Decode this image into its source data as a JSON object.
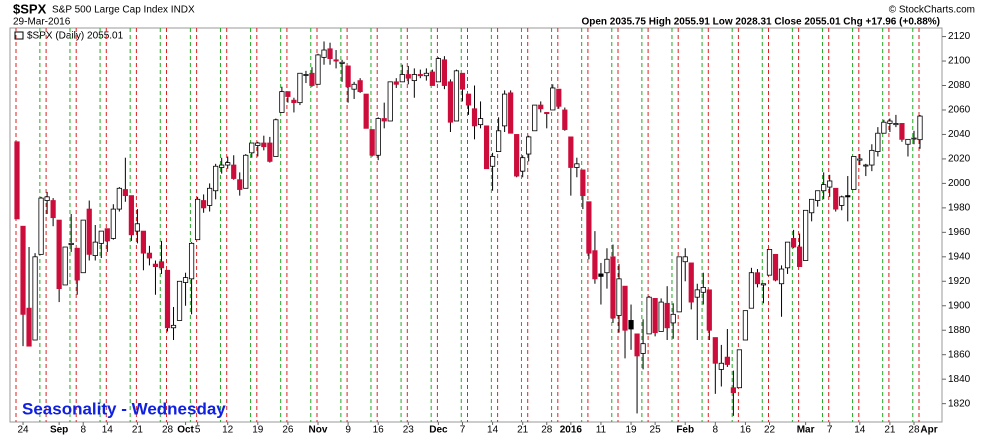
{
  "chart_data": {
    "type": "candlestick",
    "symbol": "$SPX",
    "name": "S&P 500 Large Cap Index INDX",
    "date": "29-Mar-2016",
    "credit": "© StockCharts.com",
    "quote": "Open 2035.75 High 2055.91 Low 2028.31 Close 2055.01 Chg +17.96 (+0.88%)",
    "legend": "$SPX (Daily) 2055.01",
    "annotation": "Seasonality - Wednesday",
    "up_color": "#ffffff",
    "down_color": "#cc0c3a",
    "ylim": [
      1805,
      2127
    ],
    "yticks": [
      1820,
      1840,
      1860,
      1880,
      1900,
      1920,
      1940,
      1960,
      1980,
      2000,
      2020,
      2040,
      2060,
      2080,
      2100,
      2120
    ],
    "categories": [
      null,
      "24",
      null,
      null,
      null,
      null,
      null,
      "Sep",
      null,
      null,
      null,
      "8",
      null,
      null,
      null,
      "14",
      null,
      null,
      null,
      null,
      "21",
      null,
      null,
      null,
      null,
      "28",
      null,
      null,
      "Oct",
      null,
      "5",
      null,
      null,
      null,
      null,
      "12",
      null,
      null,
      null,
      null,
      "19",
      null,
      null,
      null,
      null,
      "26",
      null,
      null,
      null,
      null,
      "Nov",
      null,
      null,
      null,
      null,
      "9",
      null,
      null,
      null,
      null,
      "16",
      null,
      null,
      null,
      null,
      "23",
      null,
      null,
      null,
      null,
      "Dec",
      null,
      null,
      null,
      "7",
      null,
      null,
      null,
      null,
      "14",
      null,
      null,
      null,
      null,
      "21",
      null,
      null,
      null,
      "28",
      null,
      null,
      null,
      "2016",
      null,
      null,
      null,
      null,
      "11",
      null,
      null,
      null,
      null,
      "19",
      null,
      null,
      null,
      "25",
      null,
      null,
      null,
      null,
      "Feb",
      null,
      null,
      null,
      null,
      "8",
      null,
      null,
      null,
      null,
      "16",
      null,
      null,
      null,
      "22",
      null,
      null,
      null,
      null,
      null,
      "Mar",
      null,
      null,
      null,
      "7",
      null,
      null,
      null,
      null,
      "14",
      null,
      null,
      null,
      null,
      "21",
      null,
      null,
      null,
      "28",
      null
    ],
    "x_end_label": "Apr",
    "ohlc": [
      [
        2034,
        2034,
        1971,
        1971
      ],
      [
        1965,
        1965,
        1867,
        1893
      ],
      [
        1898,
        1948,
        1867,
        1867
      ],
      [
        1872,
        1943,
        1872,
        1940
      ],
      [
        1942,
        1989,
        1942,
        1988
      ],
      [
        1986,
        1993,
        1975,
        1989
      ],
      [
        1986,
        1988,
        1965,
        1972
      ],
      [
        1970,
        1970,
        1903,
        1914
      ],
      [
        1917,
        1948,
        1917,
        1948
      ],
      [
        1950,
        1975,
        1944,
        1951
      ],
      [
        1947,
        1947,
        1909,
        1921
      ],
      [
        1927,
        1970,
        1927,
        1970
      ],
      [
        1979,
        1986,
        1937,
        1942
      ],
      [
        1941,
        1966,
        1937,
        1952
      ],
      [
        1951,
        1961,
        1939,
        1961
      ],
      [
        1963,
        1963,
        1944,
        1953
      ],
      [
        1955,
        1983,
        1954,
        1979
      ],
      [
        1979,
        1997,
        1977,
        1996
      ],
      [
        1995,
        2021,
        1985,
        1990
      ],
      [
        1990,
        1990,
        1953,
        1958
      ],
      [
        1961,
        1979,
        1951,
        1967
      ],
      [
        1961,
        1961,
        1929,
        1943
      ],
      [
        1943,
        1949,
        1933,
        1939
      ],
      [
        1934,
        1937,
        1909,
        1932
      ],
      [
        1936,
        1953,
        1926,
        1931
      ],
      [
        1929,
        1929,
        1879,
        1882
      ],
      [
        1882,
        1899,
        1872,
        1884
      ],
      [
        1888,
        1920,
        1888,
        1920
      ],
      [
        1919,
        1927,
        1900,
        1923
      ],
      [
        1922,
        1952,
        1893,
        1951
      ],
      [
        1954,
        1989,
        1954,
        1987
      ],
      [
        1986,
        1991,
        1976,
        1980
      ],
      [
        1982,
        2000,
        1977,
        1996
      ],
      [
        1994,
        2016,
        1987,
        2014
      ],
      [
        2013,
        2021,
        2008,
        2015
      ],
      [
        2015,
        2022,
        2012,
        2017
      ],
      [
        2015,
        2023,
        2003,
        2004
      ],
      [
        2003,
        2009,
        1990,
        1995
      ],
      [
        1996,
        2024,
        1996,
        2023
      ],
      [
        2025,
        2033,
        2021,
        2033
      ],
      [
        2031,
        2034,
        2022,
        2033
      ],
      [
        2033,
        2039,
        2027,
        2030
      ],
      [
        2033,
        2038,
        2017,
        2018
      ],
      [
        2022,
        2053,
        2022,
        2052
      ],
      [
        2058,
        2079,
        2058,
        2075
      ],
      [
        2075,
        2075,
        2066,
        2071
      ],
      [
        2068,
        2070,
        2058,
        2066
      ],
      [
        2066,
        2090,
        2064,
        2090
      ],
      [
        2089,
        2092,
        2082,
        2089
      ],
      [
        2090,
        2095,
        2079,
        2080
      ],
      [
        2081,
        2106,
        2081,
        2105
      ],
      [
        2103,
        2116,
        2097,
        2109
      ],
      [
        2110,
        2115,
        2097,
        2102
      ],
      [
        2101,
        2109,
        2094,
        2100
      ],
      [
        2098,
        2101,
        2083,
        2099
      ],
      [
        2096,
        2096,
        2066,
        2079
      ],
      [
        2077,
        2083,
        2069,
        2081
      ],
      [
        2084,
        2086,
        2074,
        2075
      ],
      [
        2073,
        2073,
        2045,
        2045
      ],
      [
        2044,
        2044,
        2022,
        2023
      ],
      [
        2023,
        2054,
        2019,
        2053
      ],
      [
        2053,
        2066,
        2045,
        2051
      ],
      [
        2051,
        2083,
        2051,
        2083
      ],
      [
        2083,
        2086,
        2078,
        2081
      ],
      [
        2083,
        2097,
        2083,
        2089
      ],
      [
        2089,
        2096,
        2081,
        2086
      ],
      [
        2084,
        2094,
        2070,
        2089
      ],
      [
        2089,
        2093,
        2086,
        2088
      ],
      [
        2088,
        2094,
        2084,
        2090
      ],
      [
        2091,
        2093,
        2080,
        2080
      ],
      [
        2083,
        2103,
        2083,
        2102
      ],
      [
        2101,
        2104,
        2077,
        2080
      ],
      [
        2083,
        2085,
        2042,
        2050
      ],
      [
        2051,
        2093,
        2051,
        2092
      ],
      [
        2090,
        2090,
        2067,
        2077
      ],
      [
        2073,
        2073,
        2056,
        2064
      ],
      [
        2061,
        2080,
        2036,
        2047
      ],
      [
        2048,
        2067,
        2045,
        2053
      ],
      [
        2047,
        2047,
        2012,
        2012
      ],
      [
        2014,
        2025,
        1994,
        2022
      ],
      [
        2026,
        2054,
        2026,
        2043
      ],
      [
        2047,
        2076,
        2042,
        2073
      ],
      [
        2074,
        2076,
        2041,
        2041
      ],
      [
        2040,
        2040,
        2005,
        2006
      ],
      [
        2010,
        2023,
        2005,
        2021
      ],
      [
        2024,
        2039,
        2018,
        2038
      ],
      [
        2043,
        2064,
        2043,
        2064
      ],
      [
        2064,
        2067,
        2058,
        2061
      ],
      [
        2058,
        2058,
        2045,
        2057
      ],
      [
        2060,
        2081,
        2060,
        2078
      ],
      [
        2077,
        2077,
        2061,
        2063
      ],
      [
        2060,
        2062,
        2043,
        2044
      ],
      [
        2038,
        2038,
        1990,
        2013
      ],
      [
        2013,
        2021,
        2005,
        2016
      ],
      [
        2011,
        2011,
        1979,
        1990
      ],
      [
        1985,
        1985,
        1938,
        1943
      ],
      [
        1945,
        1961,
        1918,
        1922
      ],
      [
        1926,
        1935,
        1901,
        1924
      ],
      [
        1927,
        1947,
        1914,
        1938
      ],
      [
        1940,
        1950,
        1886,
        1890
      ],
      [
        1892,
        1934,
        1878,
        1922
      ],
      [
        1916,
        1916,
        1857,
        1880
      ],
      [
        1888,
        1901,
        1864,
        1881
      ],
      [
        1877,
        1877,
        1812,
        1859
      ],
      [
        1861,
        1889,
        1848,
        1869
      ],
      [
        1877,
        1908,
        1877,
        1907
      ],
      [
        1906,
        1906,
        1875,
        1878
      ],
      [
        1879,
        1906,
        1879,
        1903
      ],
      [
        1902,
        1916,
        1872,
        1882
      ],
      [
        1886,
        1902,
        1873,
        1893
      ],
      [
        1895,
        1940,
        1895,
        1940
      ],
      [
        1936,
        1947,
        1920,
        1940
      ],
      [
        1935,
        1935,
        1897,
        1903
      ],
      [
        1907,
        1918,
        1872,
        1913
      ],
      [
        1911,
        1927,
        1901,
        1915
      ],
      [
        1913,
        1913,
        1872,
        1880
      ],
      [
        1874,
        1874,
        1828,
        1853
      ],
      [
        1848,
        1868,
        1834,
        1853
      ],
      [
        1858,
        1881,
        1850,
        1852
      ],
      [
        1833,
        1847,
        1810,
        1829
      ],
      [
        1833,
        1864,
        1833,
        1864
      ],
      [
        1872,
        1896,
        1872,
        1896
      ],
      [
        1898,
        1931,
        1898,
        1927
      ],
      [
        1927,
        1930,
        1915,
        1918
      ],
      [
        1917,
        1918,
        1902,
        1918
      ],
      [
        1925,
        1946,
        1925,
        1946
      ],
      [
        1942,
        1942,
        1920,
        1921
      ],
      [
        1918,
        1933,
        1891,
        1930
      ],
      [
        1931,
        1952,
        1926,
        1952
      ],
      [
        1955,
        1962,
        1947,
        1948
      ],
      [
        1948,
        1959,
        1932,
        1932
      ],
      [
        1937,
        1978,
        1937,
        1978
      ],
      [
        1976,
        1987,
        1969,
        1987
      ],
      [
        1986,
        1994,
        1981,
        1994
      ],
      [
        1994,
        2009,
        1987,
        1999
      ],
      [
        1997,
        2007,
        1989,
        2002
      ],
      [
        1996,
        1996,
        1977,
        1979
      ],
      [
        1982,
        1990,
        1978,
        1989
      ],
      [
        1990,
        2006,
        1969,
        1989
      ],
      [
        1995,
        2022,
        1995,
        2022
      ],
      [
        2019,
        2024,
        2015,
        2020
      ],
      [
        2015,
        2016,
        2006,
        2015
      ],
      [
        2015,
        2032,
        2010,
        2027
      ],
      [
        2026,
        2046,
        2022,
        2041
      ],
      [
        2041,
        2052,
        2041,
        2050
      ],
      [
        2049,
        2053,
        2042,
        2051
      ],
      [
        2048,
        2056,
        2046,
        2049
      ],
      [
        2049,
        2049,
        2034,
        2036
      ],
      [
        2032,
        2036,
        2022,
        2036
      ],
      [
        2037,
        2043,
        2032,
        2037.05
      ],
      [
        2035.75,
        2055.91,
        2028.31,
        2055.01
      ]
    ]
  }
}
